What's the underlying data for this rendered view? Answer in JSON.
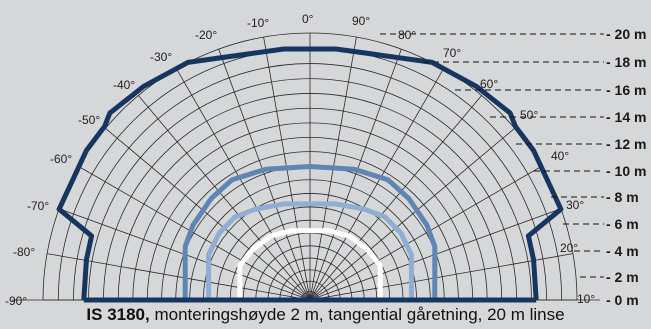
{
  "angle_labels": {
    "left": [
      "-90°",
      "-80°",
      "-70°",
      "-60°",
      "-50°",
      "-40°",
      "-30°",
      "-20°",
      "-10°"
    ],
    "center": "0°",
    "right": [
      "10°",
      "20°",
      "30°",
      "40°",
      "50°",
      "60°",
      "70°",
      "80°",
      "90°"
    ]
  },
  "distance_labels": [
    "0 m",
    "2 m",
    "4 m",
    "6 m",
    "8 m",
    "10 m",
    "12 m",
    "14 m",
    "16 m",
    "18 m",
    "20 m"
  ],
  "caption": {
    "model": "IS 3180,",
    "text": " monteringshøyde 2 m, tangential gåretning, 20 m linse"
  },
  "colors": {
    "background": "#d6d7d9",
    "grid": "#2a2a2a",
    "zone_outer": "#17365f",
    "zone_mid": "#5f86b3",
    "zone_inner": "#8faed2",
    "zone_core": "#ffffff"
  },
  "coverage_zones": [
    {
      "name": "outer",
      "color_key": "zone_outer"
    },
    {
      "name": "middle",
      "color_key": "zone_mid"
    },
    {
      "name": "inner",
      "color_key": "zone_inner"
    },
    {
      "name": "core",
      "color_key": "zone_core"
    }
  ]
}
